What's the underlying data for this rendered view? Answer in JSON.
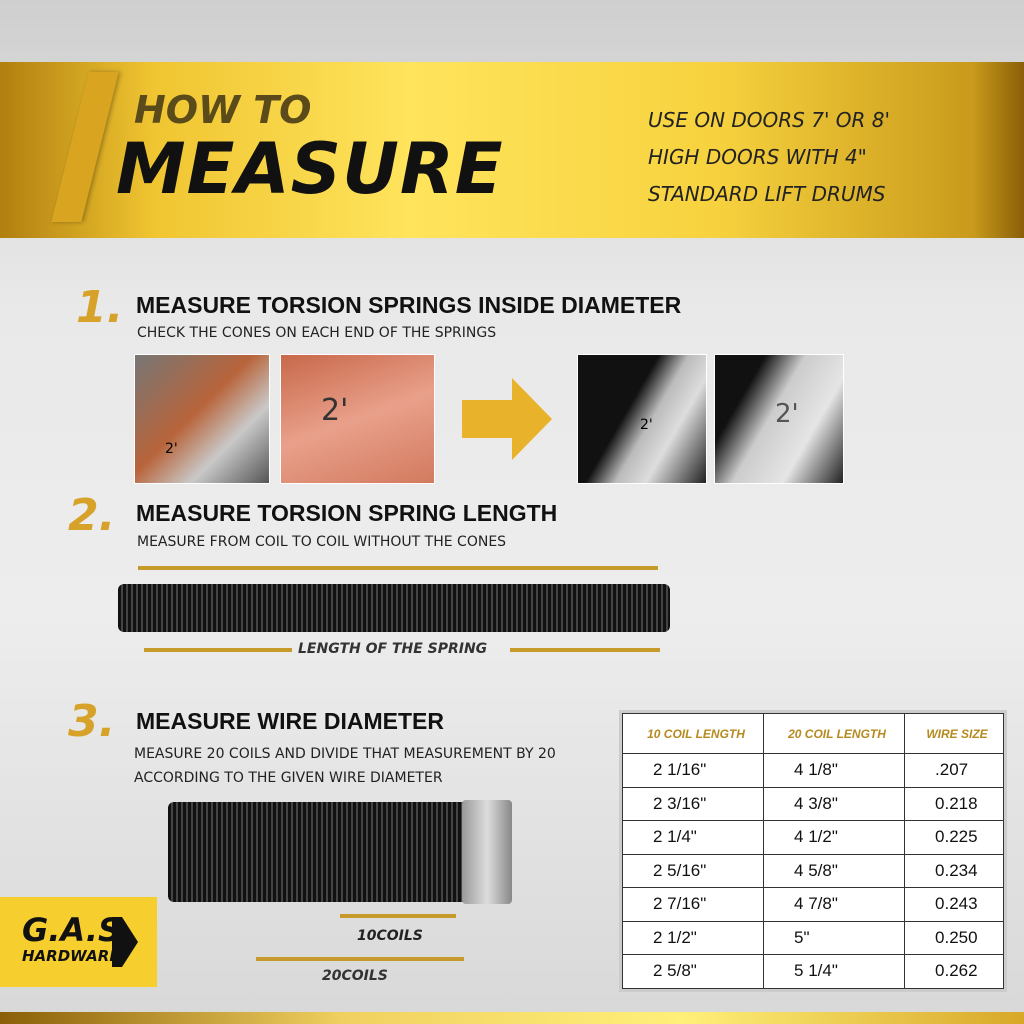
{
  "header": {
    "line1": "HOW TO",
    "line2": "MEASURE",
    "note_lines": [
      "USE ON DOORS 7' OR 8'",
      "HIGH DOORS WITH 4\"",
      "STANDARD LIFT DRUMS"
    ]
  },
  "steps": [
    {
      "number": "1.",
      "title": "MEASURE TORSION SPRINGS INSIDE DIAMETER",
      "subtitle": "CHECK THE CONES ON EACH END OF THE SPRINGS"
    },
    {
      "number": "2.",
      "title": "MEASURE TORSION SPRING LENGTH",
      "subtitle": "MEASURE FROM COIL TO COIL WITHOUT THE CONES",
      "label": "LENGTH OF THE SPRING"
    },
    {
      "number": "3.",
      "title": "MEASURE WIRE DIAMETER",
      "subtitle_lines": [
        "MEASURE 20 COILS AND DIVIDE THAT MEASUREMENT BY 20",
        "ACCORDING TO THE GIVEN WIRE DIAMETER"
      ],
      "label_10": "10COILS",
      "label_20": "20COILS"
    }
  ],
  "photo_marks": [
    "2'",
    "2'",
    "2'",
    "2'"
  ],
  "table": {
    "headers": [
      "10 COIL LENGTH",
      "20 COIL LENGTH",
      "WIRE SIZE"
    ],
    "rows": [
      [
        "2  1/16\"",
        "4  1/8\"",
        ".207"
      ],
      [
        "2  3/16\"",
        "4  3/8\"",
        "0.218"
      ],
      [
        "2  1/4\"",
        "4  1/2\"",
        "0.225"
      ],
      [
        "2  5/16\"",
        "4  5/8\"",
        "0.234"
      ],
      [
        "2  7/16\"",
        "4  7/8\"",
        "0.243"
      ],
      [
        "2  1/2\"",
        "5\"",
        "0.250"
      ],
      [
        "2  5/8\"",
        "5  1/4\"",
        "0.262"
      ]
    ]
  },
  "logo": {
    "name": "G.A.S",
    "sub": "HARDWARE"
  },
  "colors": {
    "gold": "#d7a22a",
    "logo_yellow": "#f6cf2e"
  }
}
